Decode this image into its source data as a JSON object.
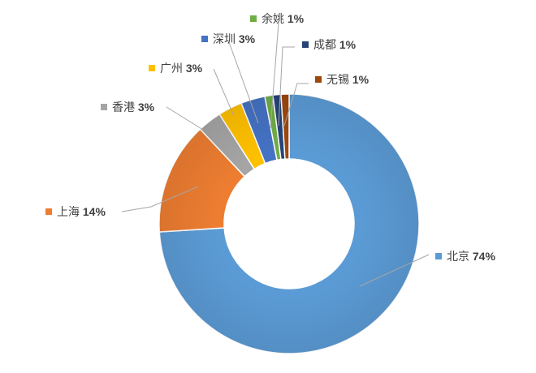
{
  "chart_data": {
    "type": "pie",
    "variant": "donut",
    "title": "",
    "legend": "none",
    "slices": [
      {
        "name": "北京",
        "value": 74,
        "label": "74%",
        "color": "#5B9BD5"
      },
      {
        "name": "上海",
        "value": 14,
        "label": "14%",
        "color": "#ED7D31"
      },
      {
        "name": "香港",
        "value": 3,
        "label": "3%",
        "color": "#A5A5A5"
      },
      {
        "name": "广州",
        "value": 3,
        "label": "3%",
        "color": "#FFC000"
      },
      {
        "name": "深圳",
        "value": 3,
        "label": "3%",
        "color": "#4472C4"
      },
      {
        "name": "余姚",
        "value": 1,
        "label": "1%",
        "color": "#70AD47"
      },
      {
        "name": "成都",
        "value": 1,
        "label": "1%",
        "color": "#264478"
      },
      {
        "name": "无锡",
        "value": 1,
        "label": "1%",
        "color": "#9E480E"
      }
    ]
  }
}
